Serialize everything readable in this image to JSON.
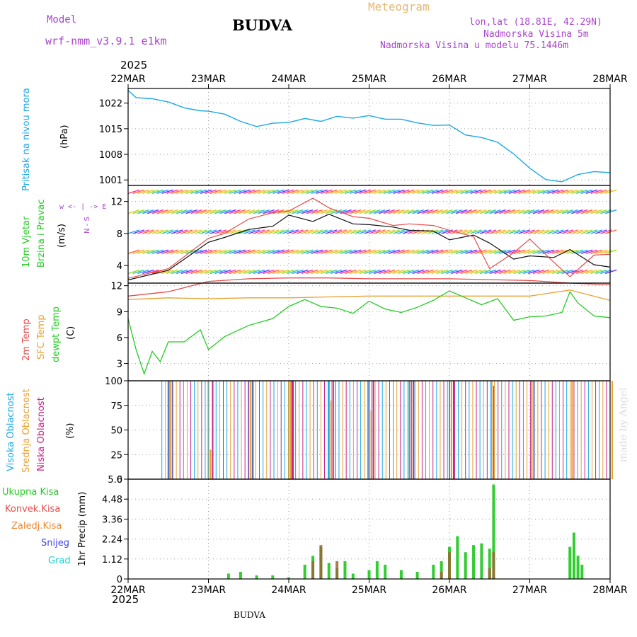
{
  "header": {
    "model_label": "Model",
    "model_name": "wrf-nmm_v3.9.1  e1km",
    "station": "BUDVA",
    "meteogram": "Meteogram",
    "lonlat": "lon,lat (18.81E, 42.29N)",
    "elev": "Nadmorska Visina 5m",
    "elev_model": "Nadmorska Visina u modelu 75.1446m",
    "year_top": "2025",
    "year_bottom": "2025",
    "footer_station": "BUDVA",
    "signature": "made by Angel"
  },
  "colors": {
    "pressure": "#1ba8e8",
    "wind_title": "#22cc22",
    "temp2m": "#e84c4c",
    "sfc": "#e8a030",
    "dewpt": "#22cc22",
    "high": "#1ba8e8",
    "mid": "#e8a030",
    "low": "#cc2288",
    "rain_total": "#33cc33",
    "rain_conv": "#e84c4c",
    "rain_froz": "#ee8833",
    "snow": "#4444ee",
    "graupel": "#22cccc",
    "purple": "#aa44cc"
  },
  "x_ticks": [
    "22MAR",
    "23MAR",
    "24MAR",
    "25MAR",
    "26MAR",
    "27MAR",
    "28MAR"
  ],
  "panels": {
    "pressure": {
      "title": "Pritisak na nivou mora",
      "unit": "(hPa)"
    },
    "wind": {
      "title1": "10m Vjetar",
      "title2": "Brzina i Pravac",
      "unit": "(m/s)",
      "compass": "w <- | -> E",
      "compass_ns": "N - S"
    },
    "temp": {
      "l1": "2m Temp",
      "l2": "SFC Temp",
      "l3": "dewpt Temp",
      "unit": "(C)"
    },
    "cloud": {
      "l1": "Visoka Oblacnost",
      "l2": "Srednja Oblacnost",
      "l3": "Niska Oblacnost",
      "unit": "(%)"
    },
    "precip": {
      "l1": "Ukupna Kisa",
      "l2": "Konvek.Kisa",
      "l3": "Zaledj.Kisa",
      "l4": "Snijeg",
      "l5": "Grad",
      "unit": "1hr Precip (mm)"
    }
  },
  "chart_data": [
    {
      "type": "line",
      "title": "Pritisak na nivou mora",
      "ylabel": "(hPa)",
      "ylim": [
        999.5,
        1026
      ],
      "yticks": [
        1001,
        1008,
        1015,
        1022
      ],
      "x_days": [
        0,
        0.1,
        0.3,
        0.5,
        0.7,
        0.9,
        1.0,
        1.2,
        1.4,
        1.6,
        1.8,
        2.0,
        2.2,
        2.4,
        2.6,
        2.8,
        3.0,
        3.2,
        3.4,
        3.6,
        3.8,
        4.0,
        4.2,
        4.4,
        4.6,
        4.8,
        5.0,
        5.2,
        5.4,
        5.6,
        5.8,
        6.0
      ],
      "values": [
        1025.5,
        1023.5,
        1023.2,
        1022.3,
        1020.7,
        1019.9,
        1019.8,
        1019.0,
        1017.0,
        1015.6,
        1016.5,
        1016.7,
        1017.8,
        1017.0,
        1018.4,
        1017.9,
        1018.6,
        1017.6,
        1017.6,
        1016.6,
        1015.9,
        1016.0,
        1013.3,
        1012.6,
        1011.3,
        1008.1,
        1004.2,
        1001.1,
        1000.5,
        1002.5,
        1003.3,
        1003.0
      ]
    },
    {
      "type": "line",
      "title": "10m Vjetar Brzina i Pravac",
      "ylabel": "(m/s)",
      "ylim": [
        1.8,
        14
      ],
      "yticks": [
        4,
        8,
        12
      ],
      "series": [
        {
          "name": "speed",
          "x_days": [
            0,
            0.5,
            1,
            1.2,
            1.5,
            1.8,
            2,
            2.3,
            2.5,
            2.8,
            3,
            3.3,
            3.5,
            3.8,
            4,
            4.3,
            4.5,
            4.8,
            5,
            5.3,
            5.5,
            5.8,
            6
          ],
          "values": [
            2.2,
            3.4,
            6.9,
            7.5,
            8.5,
            8.9,
            10.3,
            9.5,
            10.4,
            9.2,
            9.1,
            8.8,
            8.4,
            8.3,
            7.2,
            7.8,
            6.8,
            4.8,
            5.2,
            5.0,
            6.0,
            4.1,
            3.8
          ]
        },
        {
          "name": "gust",
          "x_days": [
            0,
            0.5,
            1,
            1.2,
            1.5,
            1.8,
            2,
            2.3,
            2.5,
            2.8,
            3,
            3.3,
            3.5,
            3.8,
            4,
            4.3,
            4.5,
            4.8,
            5,
            5.3,
            5.5,
            5.8,
            6
          ],
          "values": [
            2.4,
            3.6,
            7.4,
            8.0,
            9.8,
            10.6,
            10.8,
            12.4,
            11.2,
            10.1,
            9.9,
            9.0,
            9.2,
            9.0,
            8.4,
            7.6,
            3.6,
            5.6,
            7.3,
            4.4,
            2.6,
            5.3,
            5.4
          ]
        }
      ]
    },
    {
      "type": "line",
      "title": "Temp",
      "ylabel": "(C)",
      "ylim": [
        1,
        12.3
      ],
      "yticks": [
        3,
        6,
        9,
        12
      ],
      "series": [
        {
          "name": "2m Temp",
          "x_days": [
            0,
            0.5,
            1,
            1.5,
            2,
            2.5,
            3,
            3.5,
            4,
            4.5,
            5,
            5.5,
            6
          ],
          "values": [
            10.8,
            11.3,
            12.5,
            12.8,
            12.9,
            12.9,
            12.8,
            12.8,
            12.8,
            12.7,
            12.6,
            12.3,
            12.1
          ]
        },
        {
          "name": "SFC Temp",
          "x_days": [
            0,
            0.5,
            1,
            1.5,
            2,
            2.5,
            3,
            3.5,
            4,
            4.5,
            5,
            5.5,
            6
          ],
          "values": [
            10.4,
            10.6,
            10.5,
            10.6,
            10.6,
            10.7,
            10.8,
            10.8,
            10.8,
            10.8,
            10.8,
            11.5,
            10.3
          ]
        },
        {
          "name": "dewpt Temp",
          "x_days": [
            0,
            0.1,
            0.2,
            0.3,
            0.4,
            0.5,
            0.7,
            0.9,
            1.0,
            1.2,
            1.5,
            1.8,
            2.0,
            2.2,
            2.4,
            2.6,
            2.8,
            3.0,
            3.2,
            3.4,
            3.6,
            3.8,
            4.0,
            4.2,
            4.4,
            4.6,
            4.8,
            5.0,
            5.2,
            5.4,
            5.5,
            5.6,
            5.8,
            6.0
          ],
          "values": [
            8.2,
            4.6,
            1.8,
            4.4,
            3.2,
            5.5,
            5.5,
            6.9,
            4.6,
            6.1,
            7.4,
            8.2,
            9.6,
            10.4,
            9.6,
            9.4,
            8.8,
            10.2,
            9.3,
            8.9,
            9.5,
            10.3,
            11.4,
            10.6,
            9.8,
            10.5,
            8.0,
            8.4,
            8.5,
            8.9,
            11.3,
            10.0,
            8.5,
            8.3
          ]
        }
      ]
    },
    {
      "type": "bar",
      "title": "Oblacnost",
      "ylabel": "(%)",
      "ylim": [
        0,
        100
      ],
      "yticks": [
        0,
        25,
        50,
        75,
        100
      ],
      "series": [
        {
          "name": "Visoka Oblacnost",
          "x_days": [
            0.5,
            1.0,
            1.5,
            2.0,
            2.5,
            3.0,
            3.5,
            4.0
          ],
          "values": [
            100,
            100,
            100,
            100,
            100,
            100,
            100,
            100
          ]
        },
        {
          "name": "Srednja Oblacnost",
          "x_days": [
            0.5,
            1.0,
            1.5,
            2.0,
            2.5,
            3.0,
            3.5,
            4.0,
            4.5,
            5.0,
            5.5,
            6.0
          ],
          "values": [
            100,
            30,
            100,
            100,
            80,
            70,
            100,
            100,
            100,
            100,
            100,
            100
          ]
        },
        {
          "name": "Niska Oblacnost",
          "x_days": [
            0.5,
            1.0,
            1.5,
            2.0,
            2.5,
            3.0,
            3.5,
            4.0,
            4.5,
            5.0
          ],
          "values": [
            100,
            100,
            100,
            100,
            100,
            100,
            100,
            100,
            95,
            100
          ]
        }
      ]
    },
    {
      "type": "bar",
      "title": "1hr Precip",
      "ylabel": "(mm)",
      "ylim": [
        0,
        5.6
      ],
      "yticks": [
        0,
        1.12,
        2.24,
        3.36,
        4.48,
        5.6
      ],
      "series": [
        {
          "name": "Ukupna Kisa",
          "x_days": [
            1.25,
            1.4,
            1.6,
            1.8,
            2.0,
            2.2,
            2.3,
            2.4,
            2.5,
            2.6,
            2.7,
            2.8,
            3.0,
            3.1,
            3.2,
            3.4,
            3.6,
            3.8,
            3.9,
            4.0,
            4.1,
            4.2,
            4.3,
            4.4,
            4.5,
            4.55,
            5.5,
            5.55,
            5.6,
            5.65
          ],
          "values": [
            0.3,
            0.4,
            0.2,
            0.2,
            0.1,
            0.8,
            1.3,
            1.8,
            0.9,
            0.6,
            1.0,
            0.3,
            0.5,
            1.0,
            0.8,
            0.5,
            0.4,
            0.8,
            1.0,
            1.8,
            2.4,
            1.5,
            1.9,
            2.0,
            1.7,
            5.3,
            1.8,
            2.6,
            1.3,
            0.8
          ]
        },
        {
          "name": "Konvek.Kisa",
          "x_days": [
            2.3,
            2.4,
            2.6,
            3.9,
            4.0,
            4.5,
            4.55
          ],
          "values": [
            1.0,
            1.9,
            1.0,
            0.4,
            1.5,
            0.6,
            1.5
          ]
        }
      ]
    }
  ]
}
